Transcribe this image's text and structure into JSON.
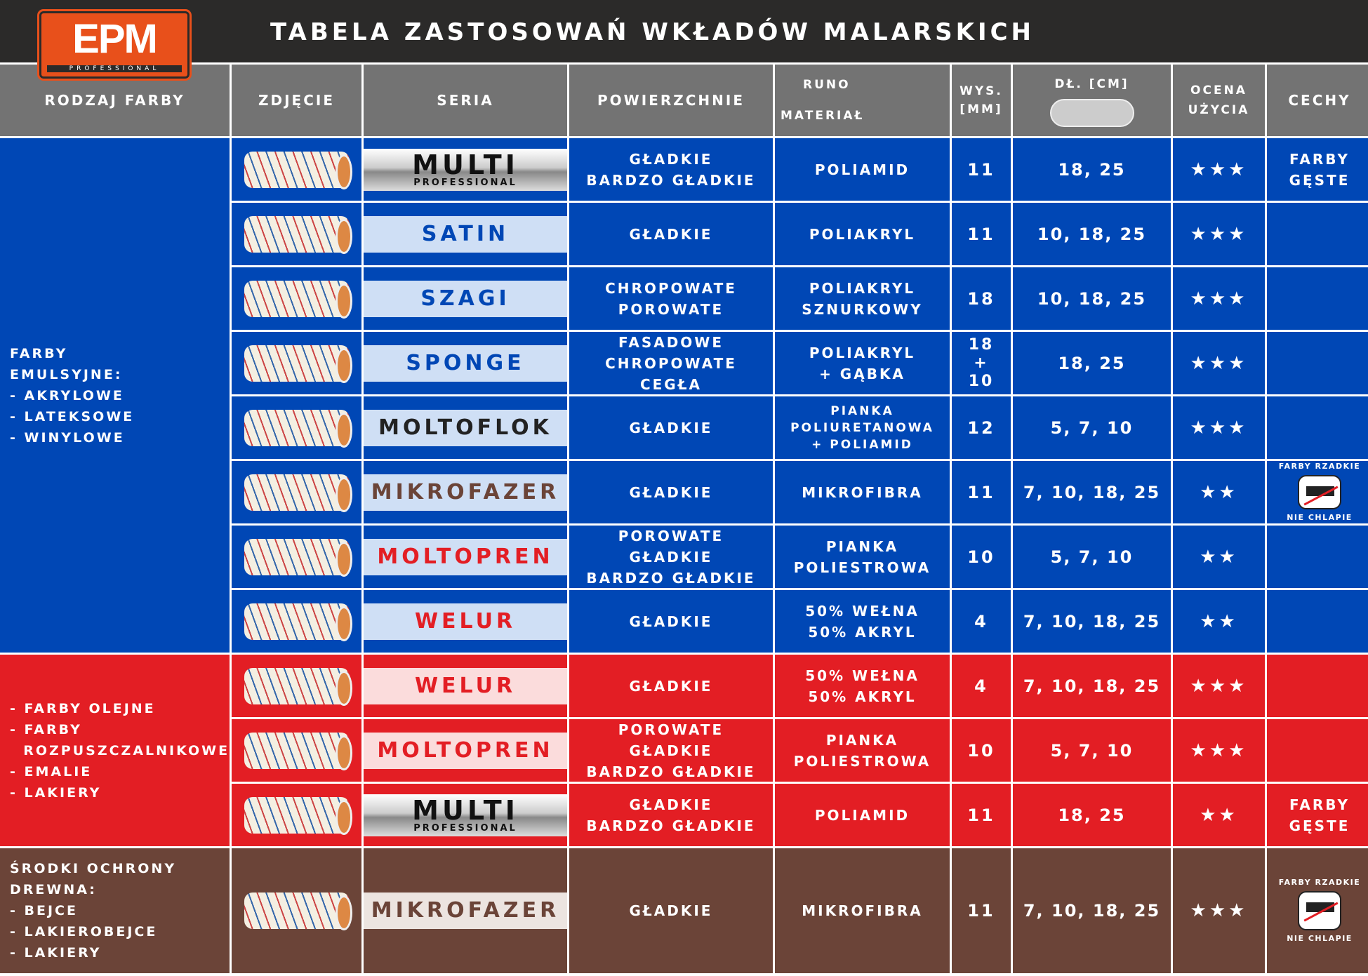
{
  "brand": {
    "logo": "EPM",
    "logo_sub": "PROFESSIONAL",
    "brand_color": "#e8501b"
  },
  "title": "TABELA ZASTOSOWAŃ WKŁADÓW MALARSKICH",
  "headers": {
    "paint_type": "RODZAJ FARBY",
    "photo": "ZDJĘCIE",
    "series": "SERIA",
    "surfaces": "POWIERZCHNIE",
    "nap": "RUNO",
    "material": "MATERIAŁ",
    "height": "WYS. [MM]",
    "length": "DŁ. [CM]",
    "rating": "OCENA UŻYCIA",
    "features": "CECHY"
  },
  "colors": {
    "blue": "#0047b5",
    "red": "#e31e24",
    "brown": "#6b4438",
    "header": "#737373",
    "title_bar": "#2b2a29"
  },
  "groups": [
    {
      "theme": "blue",
      "rows": 8,
      "lines": [
        "FARBY",
        "EMULSYJNE:",
        "- AKRYLOWE",
        "- LATEKSOWE",
        "- WINYLOWE"
      ]
    },
    {
      "theme": "red",
      "rows": 3,
      "lines": [
        "- FARBY OLEJNE",
        "- FARBY",
        "  ROZPUSZCZALNIKOWE",
        "- EMALIE",
        "- LAKIERY"
      ]
    },
    {
      "theme": "brown",
      "rows": 1,
      "lines": [
        "ŚRODKI OCHRONY",
        "DREWNA:",
        "- BEJCE",
        "- LAKIEROBEJCE",
        "- LAKIERY"
      ]
    }
  ],
  "rows": [
    {
      "theme": "blue",
      "series": "MULTI",
      "series_sub": "PROFESSIONAL",
      "series_color": "#111111",
      "surfaces": [
        "GŁADKIE",
        "BARDZO GŁADKIE"
      ],
      "material": [
        "POLIAMID"
      ],
      "height": "11",
      "length": "18, 25",
      "stars": 3,
      "features": [
        "FARBY",
        "GĘSTE"
      ]
    },
    {
      "theme": "blue",
      "series": "SATIN",
      "series_color": "#0047b5",
      "surfaces": [
        "GŁADKIE"
      ],
      "material": [
        "POLIAKRYL"
      ],
      "height": "11",
      "length": "10, 18, 25",
      "stars": 3
    },
    {
      "theme": "blue",
      "series": "SZAGI",
      "series_color": "#0047b5",
      "surfaces": [
        "CHROPOWATE",
        "POROWATE"
      ],
      "material": [
        "POLIAKRYL",
        "SZNURKOWY"
      ],
      "height": "18",
      "length": "10, 18, 25",
      "stars": 3
    },
    {
      "theme": "blue",
      "series": "SPONGE",
      "series_color": "#0047b5",
      "surfaces": [
        "FASADOWE",
        "CHROPOWATE",
        "CEGŁA"
      ],
      "material": [
        "POLIAKRYL",
        "+ GĄBKA"
      ],
      "height": "18 + 10",
      "length": "18, 25",
      "stars": 3
    },
    {
      "theme": "blue",
      "series": "MOLTOFLOK",
      "series_color": "#222222",
      "surfaces": [
        "GŁADKIE"
      ],
      "material": [
        "PIANKA",
        "POLIURETANOWA",
        "+ POLIAMID"
      ],
      "height": "12",
      "length": "5, 7, 10",
      "stars": 3
    },
    {
      "theme": "blue",
      "series": "MIKROFAZER",
      "series_color": "#6b4438",
      "surfaces": [
        "GŁADKIE"
      ],
      "material": [
        "MIKROFIBRA"
      ],
      "height": "11",
      "length": "7, 10, 18, 25",
      "stars": 2,
      "badge": {
        "top": "FARBY RZADKIE",
        "bottom": "NIE CHLAPIE",
        "icon": "no-splash-roller-icon"
      }
    },
    {
      "theme": "blue",
      "series": "MOLTOPREN",
      "series_color": "#e31e24",
      "surfaces": [
        "POROWATE",
        "GŁADKIE",
        "BARDZO GŁADKIE"
      ],
      "material": [
        "PIANKA",
        "POLIESTROWA"
      ],
      "height": "10",
      "length": "5, 7, 10",
      "stars": 2
    },
    {
      "theme": "blue",
      "series": "WELUR",
      "series_color": "#e31e24",
      "surfaces": [
        "GŁADKIE"
      ],
      "material": [
        "50% WEŁNA",
        "50% AKRYL"
      ],
      "height": "4",
      "length": "7, 10, 18, 25",
      "stars": 2
    },
    {
      "theme": "red",
      "series": "WELUR",
      "series_color": "#e31e24",
      "surfaces": [
        "GŁADKIE"
      ],
      "material": [
        "50% WEŁNA",
        "50% AKRYL"
      ],
      "height": "4",
      "length": "7, 10, 18, 25",
      "stars": 3
    },
    {
      "theme": "red",
      "series": "MOLTOPREN",
      "series_color": "#e31e24",
      "surfaces": [
        "POROWATE",
        "GŁADKIE",
        "BARDZO GŁADKIE"
      ],
      "material": [
        "PIANKA",
        "POLIESTROWA"
      ],
      "height": "10",
      "length": "5, 7, 10",
      "stars": 3
    },
    {
      "theme": "red",
      "series": "MULTI",
      "series_sub": "PROFESSIONAL",
      "series_color": "#111111",
      "surfaces": [
        "GŁADKIE",
        "BARDZO GŁADKIE"
      ],
      "material": [
        "POLIAMID"
      ],
      "height": "11",
      "length": "18, 25",
      "stars": 2,
      "features": [
        "FARBY",
        "GĘSTE"
      ]
    },
    {
      "theme": "brown",
      "series": "MIKROFAZER",
      "series_color": "#6b4438",
      "surfaces": [
        "GŁADKIE"
      ],
      "material": [
        "MIKROFIBRA"
      ],
      "height": "11",
      "length": "7, 10, 18, 25",
      "stars": 3,
      "badge": {
        "top": "FARBY RZADKIE",
        "bottom": "NIE CHLAPIE",
        "icon": "no-splash-roller-icon"
      }
    }
  ]
}
